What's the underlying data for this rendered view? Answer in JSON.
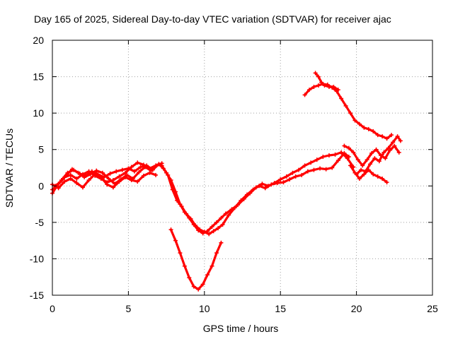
{
  "chart_data": {
    "type": "scatter",
    "title": "Day 165 of 2025, Sidereal Day-to-day VTEC variation (SDTVAR) for receiver ajac",
    "xlabel": "GPS time / hours",
    "ylabel": "SDTVAR / TECUs",
    "xlim": [
      0,
      25
    ],
    "ylim": [
      -15,
      20
    ],
    "xticks": [
      0,
      5,
      10,
      15,
      20,
      25
    ],
    "yticks": [
      -15,
      -10,
      -5,
      0,
      5,
      10,
      15,
      20
    ],
    "grid": true,
    "color": "#ff0000",
    "marker": "plus",
    "series": [
      {
        "x": [
          0.0,
          0.3,
          0.6,
          1.0,
          1.4,
          1.8,
          2.2,
          2.6,
          3.0,
          3.4,
          3.8,
          4.2,
          4.6,
          5.0,
          5.4,
          5.8,
          6.2,
          6.6,
          7.0
        ],
        "y": [
          -1.0,
          0.0,
          0.8,
          1.8,
          2.2,
          1.7,
          1.4,
          2.0,
          1.6,
          1.2,
          1.7,
          2.0,
          2.2,
          2.4,
          2.0,
          2.6,
          2.8,
          2.2,
          3.0
        ]
      },
      {
        "x": [
          0.0,
          0.4,
          0.8,
          1.2,
          1.6,
          2.0,
          2.4,
          2.8,
          3.2,
          3.6,
          4.0,
          4.4,
          4.8,
          5.2,
          5.6,
          6.0,
          6.4,
          6.8,
          7.2
        ],
        "y": [
          -0.5,
          0.3,
          1.2,
          1.5,
          1.0,
          1.6,
          2.0,
          1.4,
          1.0,
          0.5,
          0.8,
          1.3,
          1.8,
          2.6,
          3.2,
          2.9,
          2.4,
          2.8,
          3.1
        ]
      },
      {
        "x": [
          0.0,
          0.4,
          0.8,
          1.2,
          1.6,
          2.0,
          2.4,
          2.8,
          3.2,
          3.6,
          4.0,
          4.4,
          4.8,
          5.2,
          5.6,
          6.0,
          6.4,
          6.8
        ],
        "y": [
          0.2,
          -0.3,
          0.6,
          1.0,
          0.4,
          -0.2,
          0.8,
          1.6,
          1.2,
          0.2,
          -0.2,
          0.6,
          1.2,
          0.8,
          0.6,
          1.4,
          1.8,
          1.5
        ]
      },
      {
        "x": [
          0.2,
          0.5,
          0.9,
          1.3,
          1.7,
          2.1,
          2.5,
          2.9,
          3.3,
          3.7,
          4.1,
          4.5,
          4.9,
          5.3,
          5.7,
          6.1,
          6.5
        ],
        "y": [
          0.0,
          0.5,
          1.4,
          2.3,
          1.8,
          1.2,
          1.6,
          2.1,
          1.8,
          1.0,
          0.3,
          0.9,
          1.5,
          1.0,
          1.9,
          2.6,
          2.1
        ]
      },
      {
        "x": [
          7.0,
          7.3,
          7.6,
          7.9,
          8.2,
          8.5,
          8.8,
          9.1,
          9.4,
          9.7,
          10.0,
          10.3,
          10.6,
          10.9,
          11.2,
          11.6,
          12.0,
          12.4,
          12.8,
          13.2,
          13.6,
          14.0,
          14.4,
          14.8,
          15.2,
          15.6,
          16.0,
          16.4,
          16.8,
          17.2,
          17.6,
          18.0,
          18.4,
          18.8,
          19.2,
          19.5
        ],
        "y": [
          3.0,
          2.4,
          1.5,
          -0.5,
          -2.0,
          -2.8,
          -3.8,
          -4.5,
          -5.4,
          -6.0,
          -6.3,
          -6.6,
          -6.2,
          -5.8,
          -5.3,
          -4.0,
          -3.0,
          -2.0,
          -1.2,
          -0.5,
          0.0,
          -0.3,
          0.2,
          0.4,
          0.5,
          0.9,
          1.3,
          1.5,
          2.0,
          2.2,
          2.4,
          2.3,
          2.5,
          3.5,
          4.5,
          4.0
        ]
      },
      {
        "x": [
          7.2,
          7.5,
          7.8,
          8.1,
          8.4,
          8.7,
          9.0,
          9.3,
          9.6,
          9.9,
          10.2,
          10.5,
          10.8,
          11.1,
          11.4,
          11.8,
          12.2,
          12.6,
          13.0,
          13.4,
          13.8,
          14.2,
          14.6,
          15.0,
          15.4,
          15.8,
          16.2,
          16.6,
          17.0,
          17.4,
          17.8,
          18.2,
          18.6,
          19.0,
          19.4,
          19.8
        ],
        "y": [
          2.8,
          1.8,
          0.8,
          -0.8,
          -2.5,
          -3.6,
          -4.4,
          -5.3,
          -6.1,
          -6.5,
          -6.2,
          -5.6,
          -5.0,
          -4.4,
          -3.8,
          -3.2,
          -2.6,
          -1.8,
          -1.0,
          -0.2,
          0.3,
          0.0,
          0.4,
          0.9,
          1.3,
          1.8,
          2.2,
          2.8,
          3.2,
          3.6,
          4.0,
          4.2,
          4.3,
          4.6,
          3.8,
          2.6
        ]
      },
      {
        "x": [
          7.8,
          8.1,
          8.4,
          8.7,
          9.0,
          9.3,
          9.6,
          9.9,
          10.2,
          10.5,
          10.8,
          11.1
        ],
        "y": [
          -6.0,
          -7.5,
          -9.2,
          -11.0,
          -12.6,
          -13.8,
          -14.2,
          -13.5,
          -12.2,
          -11.0,
          -9.2,
          -7.8
        ]
      },
      {
        "x": [
          19.2,
          19.5,
          19.8,
          20.1,
          20.4,
          20.7,
          21.0,
          21.3,
          21.6,
          21.9,
          22.2,
          22.5,
          22.8
        ],
        "y": [
          5.5,
          5.2,
          4.6,
          3.6,
          2.8,
          3.6,
          4.5,
          5.0,
          4.2,
          3.8,
          4.9,
          5.5,
          4.6
        ]
      },
      {
        "x": [
          19.6,
          19.9,
          20.2,
          20.5,
          20.8,
          21.1,
          21.4,
          21.7,
          22.0
        ],
        "y": [
          2.8,
          1.8,
          1.0,
          1.6,
          2.2,
          1.6,
          1.3,
          1.0,
          0.5
        ]
      },
      {
        "x": [
          20.0,
          20.3,
          20.6,
          20.9,
          21.2,
          21.5,
          21.8,
          22.1,
          22.4,
          22.7,
          22.9
        ],
        "y": [
          1.6,
          2.2,
          2.0,
          3.0,
          3.8,
          3.4,
          4.6,
          5.2,
          6.0,
          6.8,
          6.2
        ]
      },
      {
        "x": [
          16.6,
          16.9,
          17.2,
          17.5,
          17.8,
          18.1,
          18.4,
          18.7,
          19.0,
          19.3,
          19.6,
          19.9,
          20.2,
          20.5,
          20.8,
          21.1,
          21.4,
          21.7,
          22.0,
          22.3
        ],
        "y": [
          12.5,
          13.2,
          13.6,
          13.8,
          14.0,
          13.9,
          13.5,
          13.0,
          12.0,
          11.0,
          10.0,
          9.0,
          8.5,
          8.0,
          7.8,
          7.5,
          7.0,
          6.8,
          6.5,
          7.0
        ]
      },
      {
        "x": [
          17.3,
          17.5,
          17.7,
          17.9,
          18.2,
          18.5,
          18.8
        ],
        "y": [
          15.5,
          15.0,
          14.2,
          13.8,
          13.6,
          13.6,
          13.2
        ]
      }
    ]
  }
}
